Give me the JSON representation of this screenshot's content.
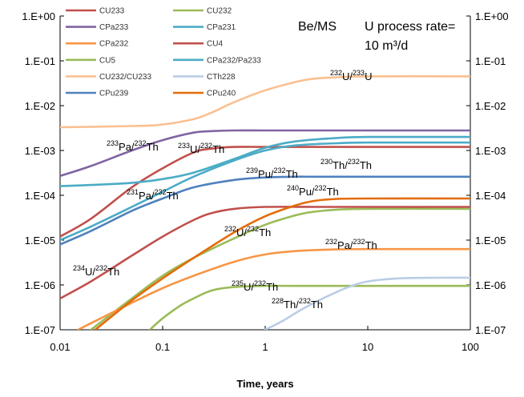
{
  "chart_data": {
    "type": "line",
    "title": "Be/MS",
    "subtitle_lines": [
      "U process rate=",
      "10 m³/d"
    ],
    "xlabel": "Time, years",
    "ylabel": "",
    "xscale": "log",
    "yscale": "log",
    "xlim": [
      0.01,
      100
    ],
    "ylim": [
      1e-07,
      1
    ],
    "x_ticks": [
      {
        "value": 0.01,
        "label": "0.01"
      },
      {
        "value": 0.1,
        "label": "0.1"
      },
      {
        "value": 1,
        "label": "1"
      },
      {
        "value": 10,
        "label": "10"
      },
      {
        "value": 100,
        "label": "100"
      }
    ],
    "y_ticks": [
      {
        "value": 1,
        "label": "1.E+00"
      },
      {
        "value": 0.1,
        "label": "1.E-01"
      },
      {
        "value": 0.01,
        "label": "1.E-02"
      },
      {
        "value": 0.001,
        "label": "1.E-03"
      },
      {
        "value": 0.0001,
        "label": "1.E-04"
      },
      {
        "value": 1e-05,
        "label": "1.E-05"
      },
      {
        "value": 1e-06,
        "label": "1.E-06"
      },
      {
        "value": 1e-07,
        "label": "1.E-07"
      }
    ],
    "grid": false,
    "legend_position": "top-left",
    "series": [
      {
        "name": "CU233",
        "color": "#c0504d",
        "x": [
          0.01,
          0.02,
          0.05,
          0.1,
          0.2,
          0.3,
          0.5,
          1,
          3,
          10,
          100
        ],
        "y": [
          1.2e-05,
          3e-05,
          0.00015,
          0.0004,
          0.0009,
          0.0011,
          0.0012,
          0.0012,
          0.0012,
          0.0012,
          0.0012
        ]
      },
      {
        "name": "CU232",
        "color": "#9bbb59",
        "x": [
          0.02,
          0.05,
          0.1,
          0.2,
          0.5,
          1,
          2,
          3,
          5,
          10,
          100
        ],
        "y": [
          1e-07,
          5e-07,
          1.6e-06,
          4e-06,
          1.1e-05,
          2.2e-05,
          3.6e-05,
          4.3e-05,
          4.8e-05,
          5e-05,
          5e-05
        ]
      },
      {
        "name": "CPa233",
        "color": "#8064a2",
        "x": [
          0.01,
          0.02,
          0.05,
          0.1,
          0.2,
          0.3,
          0.5,
          1,
          3,
          10,
          100
        ],
        "y": [
          0.00027,
          0.00045,
          0.001,
          0.0017,
          0.0025,
          0.0027,
          0.0028,
          0.0028,
          0.0028,
          0.0028,
          0.0028
        ]
      },
      {
        "name": "CPa231",
        "color": "#4bacc6",
        "x": [
          0.01,
          0.02,
          0.05,
          0.1,
          0.2,
          0.5,
          1,
          2,
          5,
          10,
          100
        ],
        "y": [
          1e-05,
          2e-05,
          5.5e-05,
          0.00012,
          0.00026,
          0.0006,
          0.001,
          0.0013,
          0.00145,
          0.0015,
          0.0015
        ]
      },
      {
        "name": "CPa232",
        "color": "#f79646",
        "x": [
          0.015,
          0.02,
          0.05,
          0.1,
          0.2,
          0.5,
          1,
          2,
          5,
          10,
          100
        ],
        "y": [
          1e-07,
          1.4e-07,
          4e-07,
          8.5e-07,
          1.6e-06,
          3.3e-06,
          4.8e-06,
          5.7e-06,
          6.2e-06,
          6.3e-06,
          6.3e-06
        ]
      },
      {
        "name": "CU4",
        "color": "#c0504d",
        "x": [
          0.01,
          0.02,
          0.05,
          0.1,
          0.2,
          0.3,
          0.5,
          1,
          3,
          10,
          100
        ],
        "y": [
          5e-07,
          1.2e-06,
          4.5e-06,
          1.2e-05,
          2.8e-05,
          4e-05,
          5e-05,
          5.5e-05,
          5.5e-05,
          5.5e-05,
          5.5e-05
        ]
      },
      {
        "name": "CU5",
        "color": "#9bbb59",
        "x": [
          0.075,
          0.1,
          0.15,
          0.2,
          0.3,
          0.5,
          1,
          3,
          10,
          100
        ],
        "y": [
          1e-07,
          1.8e-07,
          3.5e-07,
          5e-07,
          7.5e-07,
          9e-07,
          9.5e-07,
          9.5e-07,
          9.5e-07,
          9.5e-07
        ]
      },
      {
        "name": "CPa232/Pa233",
        "color": "#4bacc6",
        "x": [
          0.01,
          0.02,
          0.05,
          0.1,
          0.2,
          0.5,
          1,
          2,
          5,
          10,
          100
        ],
        "y": [
          0.00016,
          0.00017,
          0.00019,
          0.00023,
          0.00032,
          0.00065,
          0.00115,
          0.0016,
          0.0019,
          0.002,
          0.002
        ]
      },
      {
        "name": "CU232/CU233",
        "color": "#fac090",
        "x": [
          0.01,
          0.05,
          0.1,
          0.2,
          0.3,
          0.5,
          1,
          2,
          3,
          5,
          10,
          100
        ],
        "y": [
          0.0033,
          0.0035,
          0.0038,
          0.005,
          0.007,
          0.012,
          0.022,
          0.034,
          0.04,
          0.043,
          0.045,
          0.045
        ]
      },
      {
        "name": "CTh228",
        "color": "#b9cde5",
        "x": [
          1,
          1.5,
          2,
          3,
          5,
          7,
          10,
          20,
          50,
          100
        ],
        "y": [
          1e-07,
          1.6e-07,
          2.4e-07,
          4e-07,
          7e-07,
          9.5e-07,
          1.2e-06,
          1.4e-06,
          1.45e-06,
          1.45e-06
        ]
      },
      {
        "name": "CPu239",
        "color": "#4f81bd",
        "x": [
          0.01,
          0.02,
          0.05,
          0.1,
          0.2,
          0.5,
          1,
          2,
          3,
          10,
          100
        ],
        "y": [
          8e-06,
          1.6e-05,
          4.5e-05,
          8.5e-05,
          0.00015,
          0.00022,
          0.00025,
          0.00026,
          0.00026,
          0.00026,
          0.00026
        ]
      },
      {
        "name": "CPu240",
        "color": "#e36c09",
        "x": [
          0.022,
          0.05,
          0.1,
          0.2,
          0.5,
          1,
          2,
          3,
          5,
          10,
          100
        ],
        "y": [
          1e-07,
          4.5e-07,
          1.4e-06,
          4e-06,
          1.5e-05,
          3.4e-05,
          6e-05,
          7.5e-05,
          8.3e-05,
          8.5e-05,
          8.5e-05
        ]
      }
    ],
    "annotations": [
      {
        "parts": [
          [
            "sup",
            "232"
          ],
          [
            "base",
            "U/"
          ],
          [
            "sup",
            "233"
          ],
          [
            "base",
            "U"
          ]
        ]
      },
      {
        "parts": [
          [
            "sup",
            "233"
          ],
          [
            "base",
            "Pa/"
          ],
          [
            "sup",
            "232"
          ],
          [
            "base",
            "Th"
          ]
        ]
      },
      {
        "parts": [
          [
            "sup",
            "233"
          ],
          [
            "base",
            "U/"
          ],
          [
            "sup",
            "232"
          ],
          [
            "base",
            "Th"
          ]
        ]
      },
      {
        "parts": [
          [
            "sup",
            "230"
          ],
          [
            "base",
            "Th/"
          ],
          [
            "sup",
            "232"
          ],
          [
            "base",
            "Th"
          ]
        ]
      },
      {
        "parts": [
          [
            "sup",
            "239"
          ],
          [
            "base",
            "Pu/"
          ],
          [
            "sup",
            "232"
          ],
          [
            "base",
            "Th"
          ]
        ]
      },
      {
        "parts": [
          [
            "sup",
            "240"
          ],
          [
            "base",
            "Pu/"
          ],
          [
            "sup",
            "232"
          ],
          [
            "base",
            "Th"
          ]
        ]
      },
      {
        "parts": [
          [
            "sup",
            "231"
          ],
          [
            "base",
            "Pa/"
          ],
          [
            "sup",
            "232"
          ],
          [
            "base",
            "Th"
          ]
        ]
      },
      {
        "parts": [
          [
            "sup",
            "232"
          ],
          [
            "base",
            "U/"
          ],
          [
            "sup",
            "232"
          ],
          [
            "base",
            "Th"
          ]
        ]
      },
      {
        "parts": [
          [
            "sup",
            "232"
          ],
          [
            "base",
            "Pa/"
          ],
          [
            "sup",
            "232"
          ],
          [
            "base",
            "Th"
          ]
        ]
      },
      {
        "parts": [
          [
            "sup",
            "234"
          ],
          [
            "base",
            "U/"
          ],
          [
            "sup",
            "232"
          ],
          [
            "base",
            "Th"
          ]
        ]
      },
      {
        "parts": [
          [
            "sup",
            "235"
          ],
          [
            "base",
            "U/"
          ],
          [
            "sup",
            "232"
          ],
          [
            "base",
            "Th"
          ]
        ]
      },
      {
        "parts": [
          [
            "sup",
            "228"
          ],
          [
            "base",
            "Th/"
          ],
          [
            "sup",
            "232"
          ],
          [
            "base",
            "Th"
          ]
        ]
      }
    ]
  }
}
